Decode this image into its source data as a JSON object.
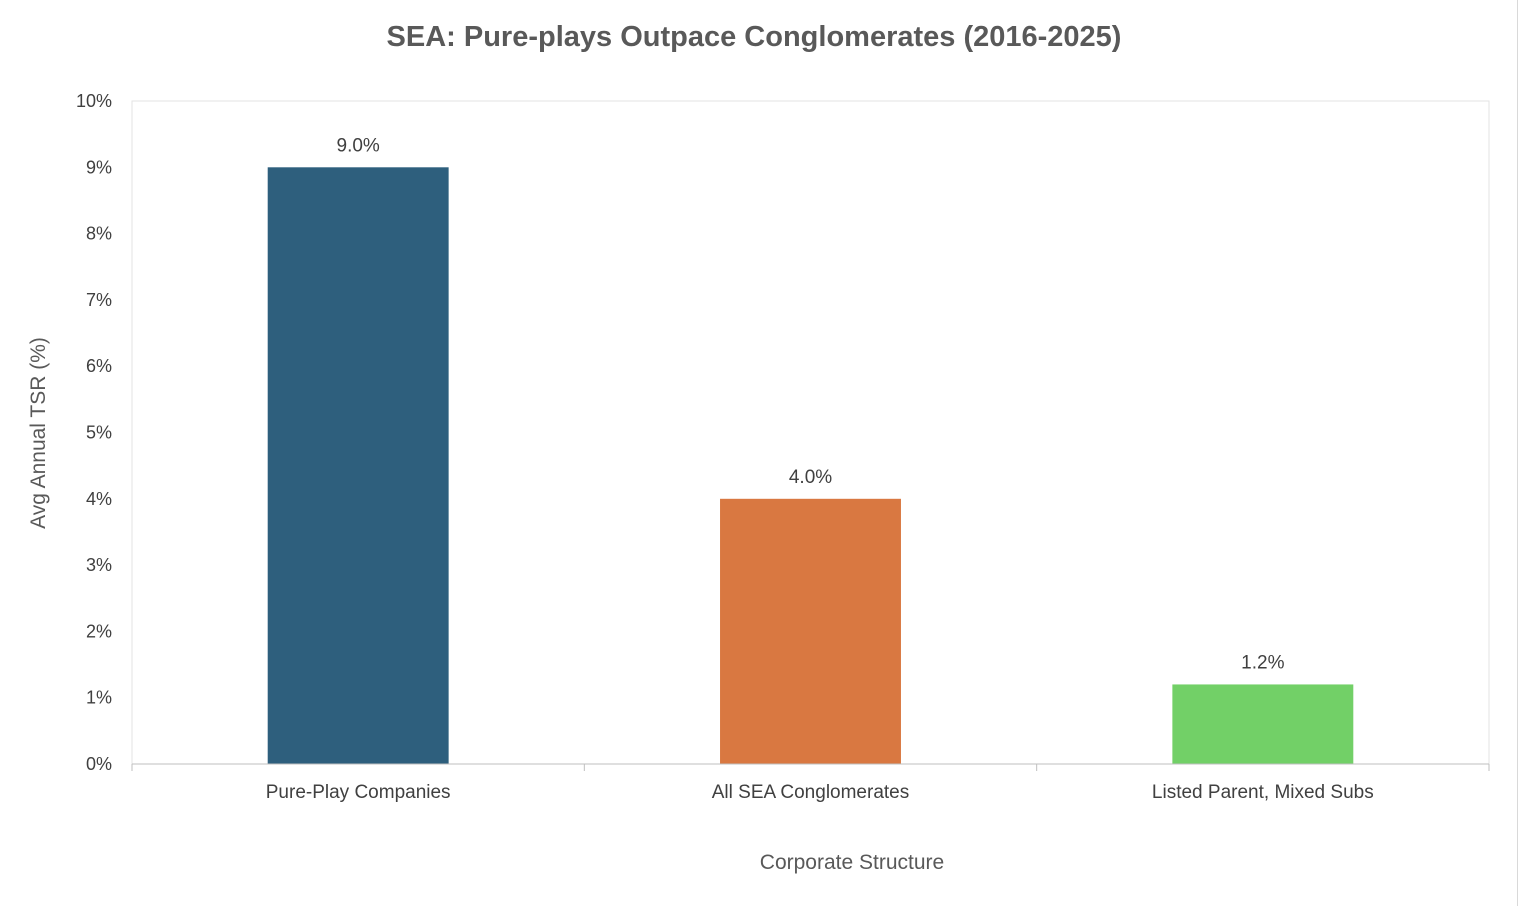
{
  "chart_data": {
    "type": "bar",
    "title": "SEA: Pure-plays Outpace Conglomerates (2016-2025)",
    "xlabel": "Corporate Structure",
    "ylabel": "Avg Annual TSR (%)",
    "categories": [
      "Pure-Play Companies",
      "All SEA Conglomerates",
      "Listed Parent, Mixed Subs"
    ],
    "values": [
      9.0,
      4.0,
      1.2
    ],
    "data_labels": [
      "9.0%",
      "4.0%",
      "1.2%"
    ],
    "bar_colors": [
      "#2E5F7D",
      "#D97841",
      "#72D067"
    ],
    "ylim": [
      0,
      10
    ],
    "yticks": [
      0,
      1,
      2,
      3,
      4,
      5,
      6,
      7,
      8,
      9,
      10
    ],
    "ytick_labels": [
      "0%",
      "1%",
      "2%",
      "3%",
      "4%",
      "5%",
      "6%",
      "7%",
      "8%",
      "9%",
      "10%"
    ],
    "grid": false,
    "legend": "none"
  }
}
